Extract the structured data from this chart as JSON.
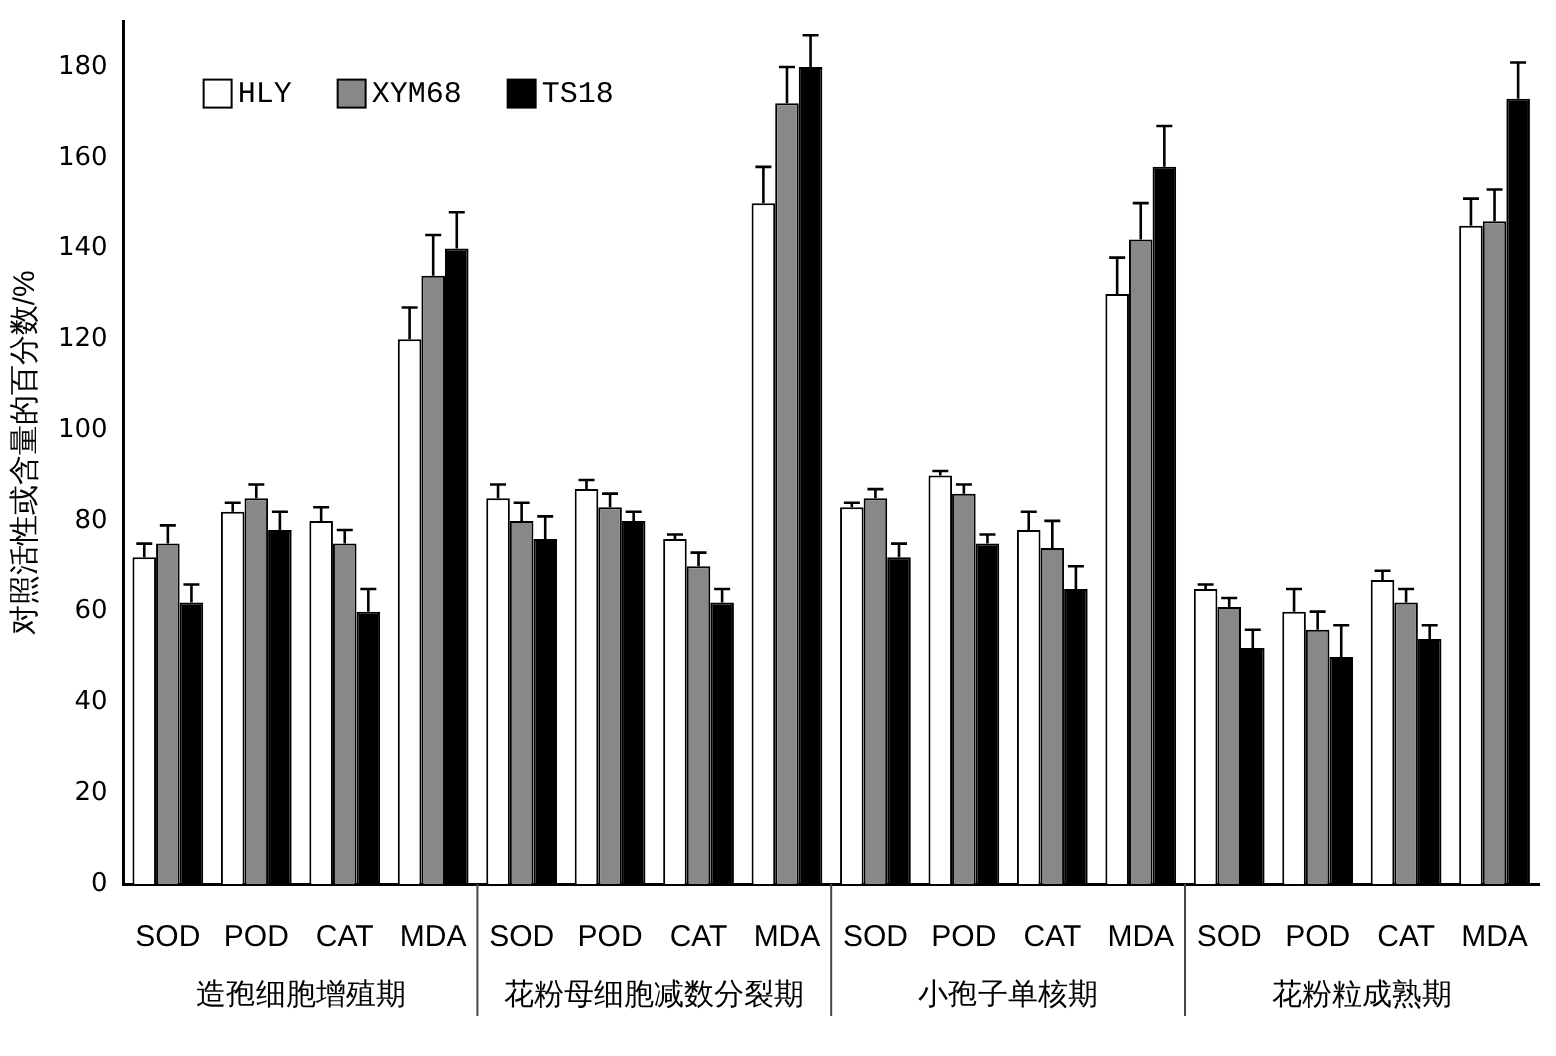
{
  "chart_data": {
    "type": "bar",
    "ylabel": "对照活性或含量的百分数/%",
    "categories": [
      "SOD",
      "POD",
      "CAT",
      "MDA",
      "SOD",
      "POD",
      "CAT",
      "MDA",
      "SOD",
      "POD",
      "CAT",
      "MDA",
      "SOD",
      "POD",
      "CAT",
      "MDA"
    ],
    "series": [
      {
        "name": "HLY",
        "color": "#ffffff",
        "values": [
          72,
          82,
          80,
          120,
          85,
          87,
          76,
          150,
          83,
          90,
          78,
          130,
          65,
          60,
          67,
          145
        ],
        "errors": [
          3,
          2,
          3,
          7,
          3,
          2,
          1,
          8,
          1,
          1,
          4,
          8,
          1,
          5,
          2,
          6
        ]
      },
      {
        "name": "XYM68",
        "color": "#888888",
        "values": [
          75,
          85,
          75,
          134,
          80,
          83,
          70,
          172,
          85,
          86,
          74,
          142,
          61,
          56,
          62,
          146
        ],
        "errors": [
          4,
          3,
          3,
          9,
          4,
          3,
          3,
          8,
          2,
          2,
          6,
          8,
          2,
          4,
          3,
          7
        ]
      },
      {
        "name": "TS18",
        "color": "#000000",
        "values": [
          62,
          78,
          60,
          140,
          76,
          80,
          62,
          180,
          72,
          75,
          65,
          158,
          52,
          50,
          54,
          173
        ],
        "errors": [
          4,
          4,
          5,
          8,
          5,
          2,
          3,
          7,
          3,
          2,
          5,
          9,
          4,
          7,
          3,
          8
        ]
      }
    ],
    "annotations": [
      "造孢细胞增殖期",
      "花粉母细胞减数分裂期",
      "小孢子单核期",
      "花粉粒成熟期"
    ],
    "ylim": [
      0,
      190
    ],
    "yticks": [
      0,
      20,
      40,
      60,
      80,
      100,
      120,
      140,
      160,
      180
    ],
    "grid": false,
    "legend": "top left"
  }
}
